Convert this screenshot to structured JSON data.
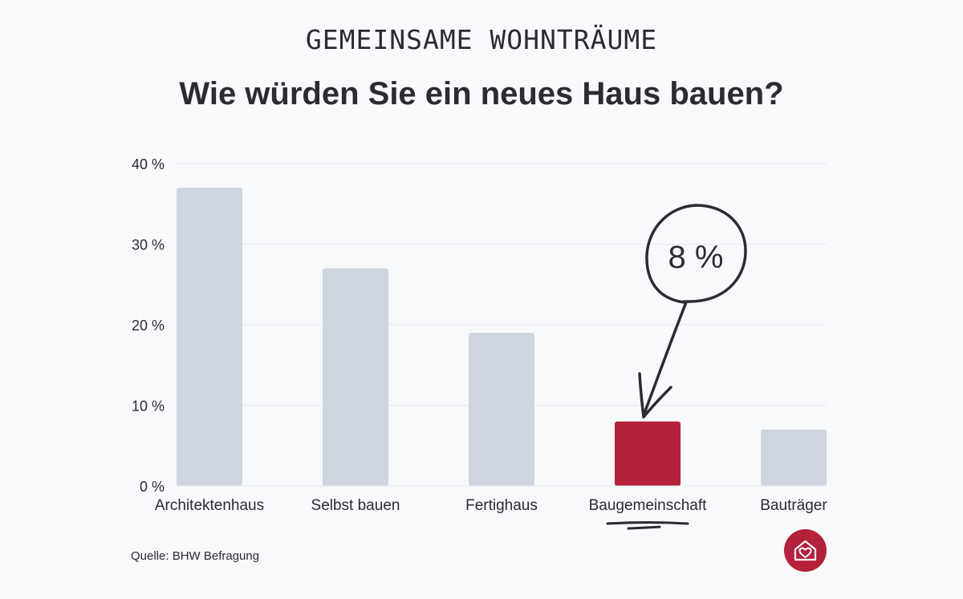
{
  "header": {
    "kicker": "GEMEINSAME WOHNTRÄUME",
    "title": "Wie würden Sie ein neues Haus bauen?"
  },
  "chart_data": {
    "type": "bar",
    "categories": [
      "Architektenhaus",
      "Selbst bauen",
      "Fertighaus",
      "Baugemeinschaft",
      "Bauträger"
    ],
    "values": [
      37,
      27,
      19,
      8,
      7
    ],
    "highlight_index": 3,
    "ylim": [
      0,
      40
    ],
    "yticks": [
      0,
      10,
      20,
      30,
      40
    ],
    "ytick_labels": [
      "0 %",
      "10 %",
      "20 %",
      "30 %",
      "40 %"
    ],
    "grid": true,
    "annotation": {
      "text": "8 %",
      "category": "Baugemeinschaft"
    },
    "colors": {
      "bar": "#cfd5df",
      "highlight": "#b5203a",
      "grid": "#e4e7ec",
      "text": "#2b2b33"
    }
  },
  "footer": {
    "source": "Quelle: BHW Befragung"
  },
  "logo": {
    "icon": "house-heart-icon",
    "color": "#b5203a"
  }
}
